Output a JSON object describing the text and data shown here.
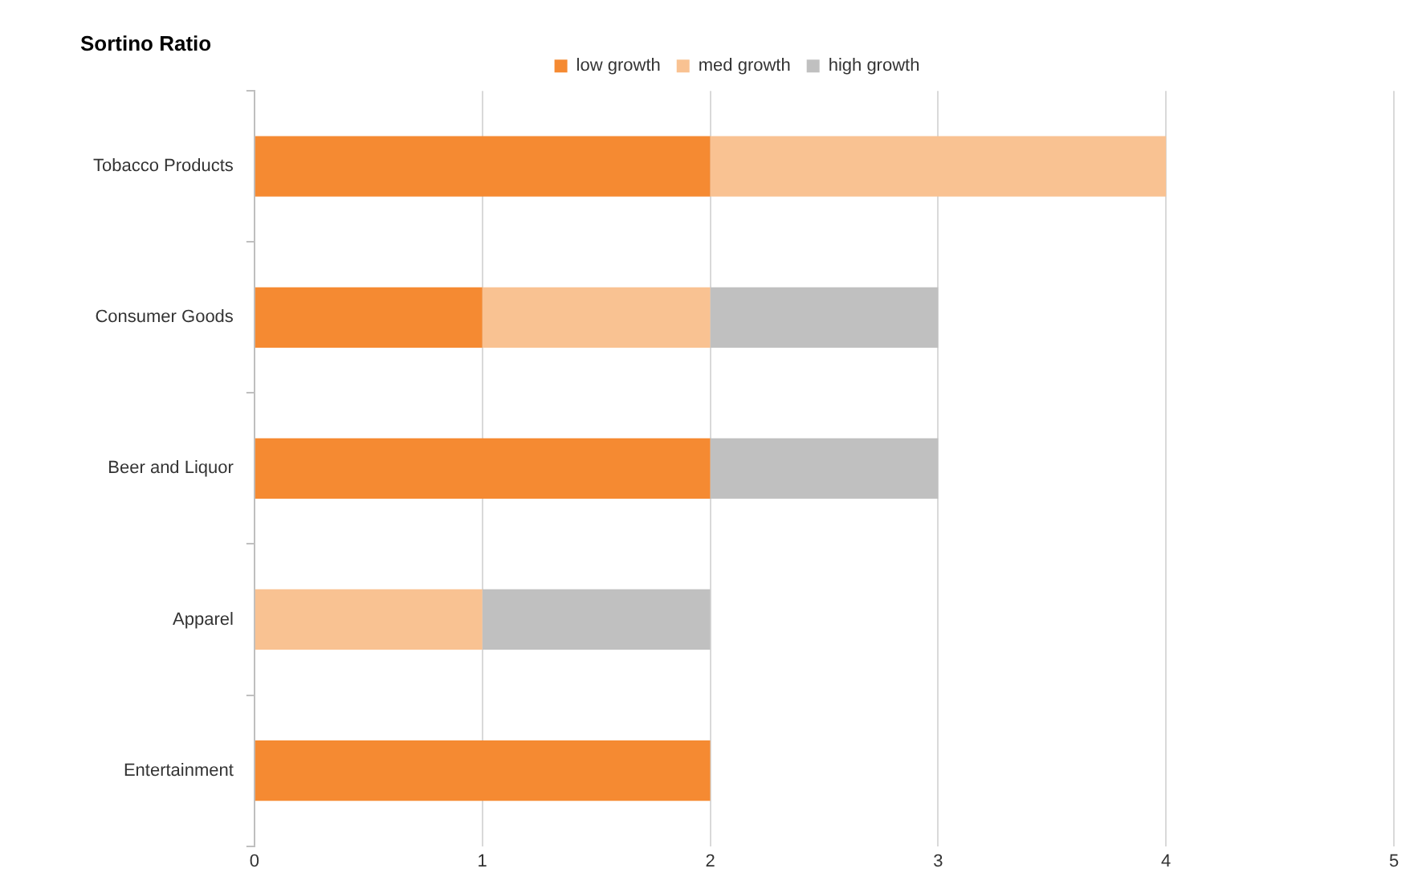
{
  "chart_data": {
    "type": "bar",
    "orientation": "horizontal",
    "stacked": true,
    "title": "Sortino Ratio",
    "categories": [
      "Tobacco Products",
      "Consumer Goods",
      "Beer and Liquor",
      "Apparel",
      "Entertainment"
    ],
    "series": [
      {
        "name": "low growth",
        "color": "#f58a32",
        "values": [
          2,
          1,
          2,
          0,
          2
        ]
      },
      {
        "name": "med growth",
        "color": "#f9c292",
        "values": [
          2,
          1,
          0,
          1,
          0
        ]
      },
      {
        "name": "high growth",
        "color": "#c0c0c0",
        "values": [
          0,
          1,
          1,
          1,
          0
        ]
      }
    ],
    "xlim": [
      0,
      5
    ],
    "xticks": [
      0,
      1,
      2,
      3,
      4,
      5
    ],
    "grid": "x",
    "legend": "top"
  }
}
